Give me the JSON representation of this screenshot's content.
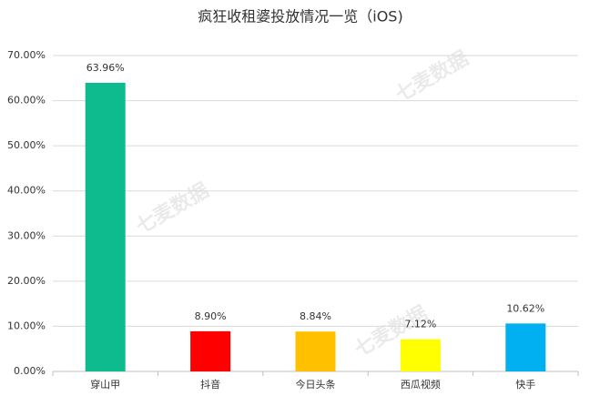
{
  "chart_data": {
    "type": "bar",
    "title": "疯狂收租婆投放情况一览（iOS)",
    "categories": [
      "穿山甲",
      "抖音",
      "今日头条",
      "西瓜视频",
      "快手"
    ],
    "values": [
      63.96,
      8.9,
      8.84,
      7.12,
      10.62
    ],
    "value_labels": [
      "63.96%",
      "8.90%",
      "8.84%",
      "7.12%",
      "10.62%"
    ],
    "colors": [
      "#0dbb8f",
      "#ff0000",
      "#ffc000",
      "#ffff00",
      "#00b0f0"
    ],
    "ylim": [
      0,
      70
    ],
    "yticks": [
      {
        "value": 0,
        "label": "0.00%"
      },
      {
        "value": 10,
        "label": "10.00%"
      },
      {
        "value": 20,
        "label": "20.00%"
      },
      {
        "value": 30,
        "label": "30.00%"
      },
      {
        "value": 40,
        "label": "40.00%"
      },
      {
        "value": 50,
        "label": "50.00%"
      },
      {
        "value": 60,
        "label": "60.00%"
      },
      {
        "value": 70,
        "label": "70.00%"
      }
    ],
    "grid": true,
    "watermark": "七麦数据"
  }
}
